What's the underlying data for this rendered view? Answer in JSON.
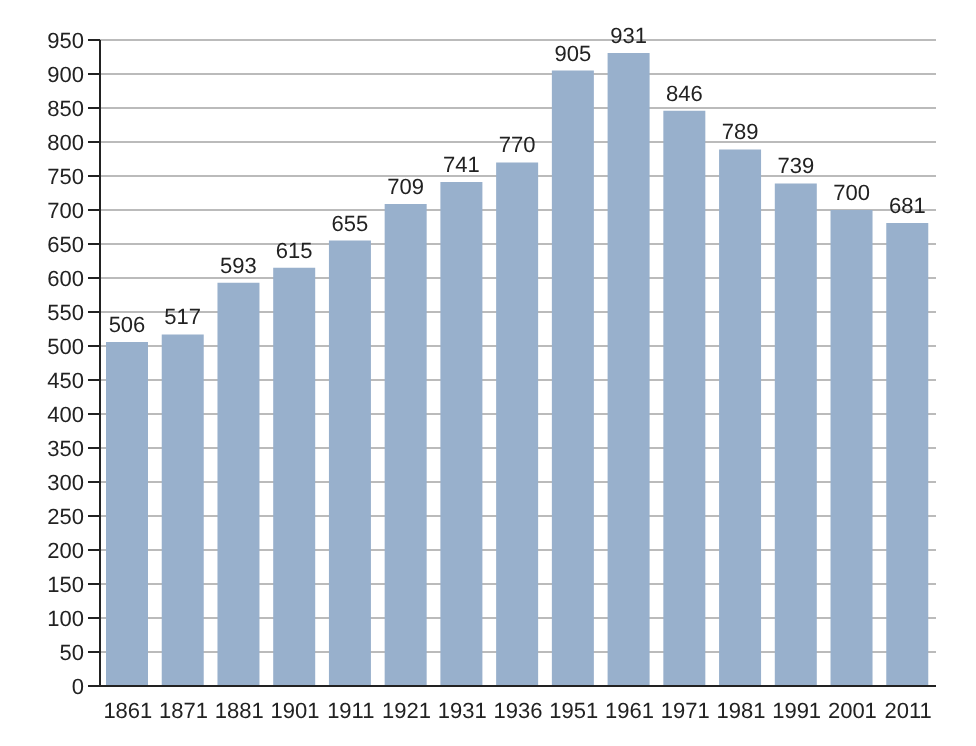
{
  "chart_data": {
    "type": "bar",
    "categories": [
      "1861",
      "1871",
      "1881",
      "1901",
      "1911",
      "1921",
      "1931",
      "1936",
      "1951",
      "1961",
      "1971",
      "1981",
      "1991",
      "2001",
      "2011"
    ],
    "values": [
      506,
      517,
      593,
      615,
      655,
      709,
      741,
      770,
      905,
      931,
      846,
      789,
      739,
      700,
      681
    ],
    "color": "#98b0cc",
    "data_labels": true,
    "grid": "y",
    "ylim": [
      0,
      950
    ],
    "yticks": [
      0,
      50,
      100,
      150,
      200,
      250,
      300,
      350,
      400,
      450,
      500,
      550,
      600,
      650,
      700,
      750,
      800,
      850,
      900,
      950
    ]
  }
}
